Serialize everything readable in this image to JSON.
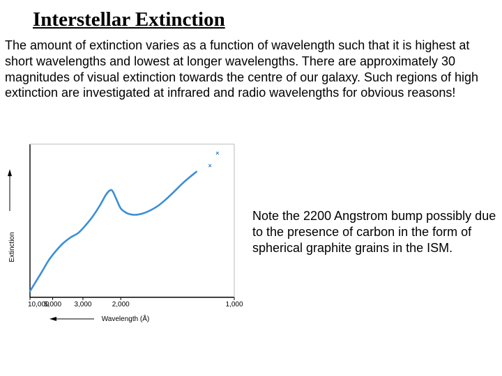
{
  "title": "Interstellar Extinction",
  "intro": "The amount of extinction varies as a function of wavelength such that it is highest at short wavelengths and lowest at longer wavelengths. There are approximately 30 magnitudes of visual extinction towards the centre of our galaxy. Such regions of high extinction are investigated at infrared and radio wavelengths for obvious reasons!",
  "note": "Note the 2200 Angstrom bump possibly due to the presence of carbon in the form of spherical graphite grains in the ISM.",
  "chart_data": {
    "type": "line",
    "title": "",
    "xlabel": "Wavelength (Å)",
    "ylabel": "Extinction",
    "x_scale": "reciprocal",
    "xlim": [
      10000,
      1000
    ],
    "x_ticks": [
      {
        "value": 10000,
        "label": "10,000"
      },
      {
        "value": 5000,
        "label": "5,000"
      },
      {
        "value": 3000,
        "label": "3,000"
      },
      {
        "value": 2000,
        "label": "2,000"
      },
      {
        "value": 1000,
        "label": "1,000"
      }
    ],
    "ylim": [
      0,
      1
    ],
    "grid": false,
    "series": [
      {
        "type": "line",
        "x": [
          10000,
          8000,
          6500,
          5500,
          4700,
          4100,
          3600,
          3200,
          2900,
          2650,
          2450,
          2300,
          2200,
          2150,
          2080,
          2000,
          1900,
          1820,
          1740,
          1660,
          1580,
          1500,
          1430,
          1360,
          1300,
          1250,
          1200
        ],
        "y": [
          0.04,
          0.1,
          0.17,
          0.24,
          0.3,
          0.35,
          0.39,
          0.42,
          0.47,
          0.53,
          0.6,
          0.67,
          0.7,
          0.69,
          0.64,
          0.58,
          0.55,
          0.54,
          0.54,
          0.55,
          0.57,
          0.6,
          0.64,
          0.69,
          0.74,
          0.78,
          0.82
        ]
      },
      {
        "type": "scatter",
        "marker": "x",
        "x": [
          1120,
          1080
        ],
        "y": [
          0.86,
          0.94
        ]
      }
    ]
  }
}
